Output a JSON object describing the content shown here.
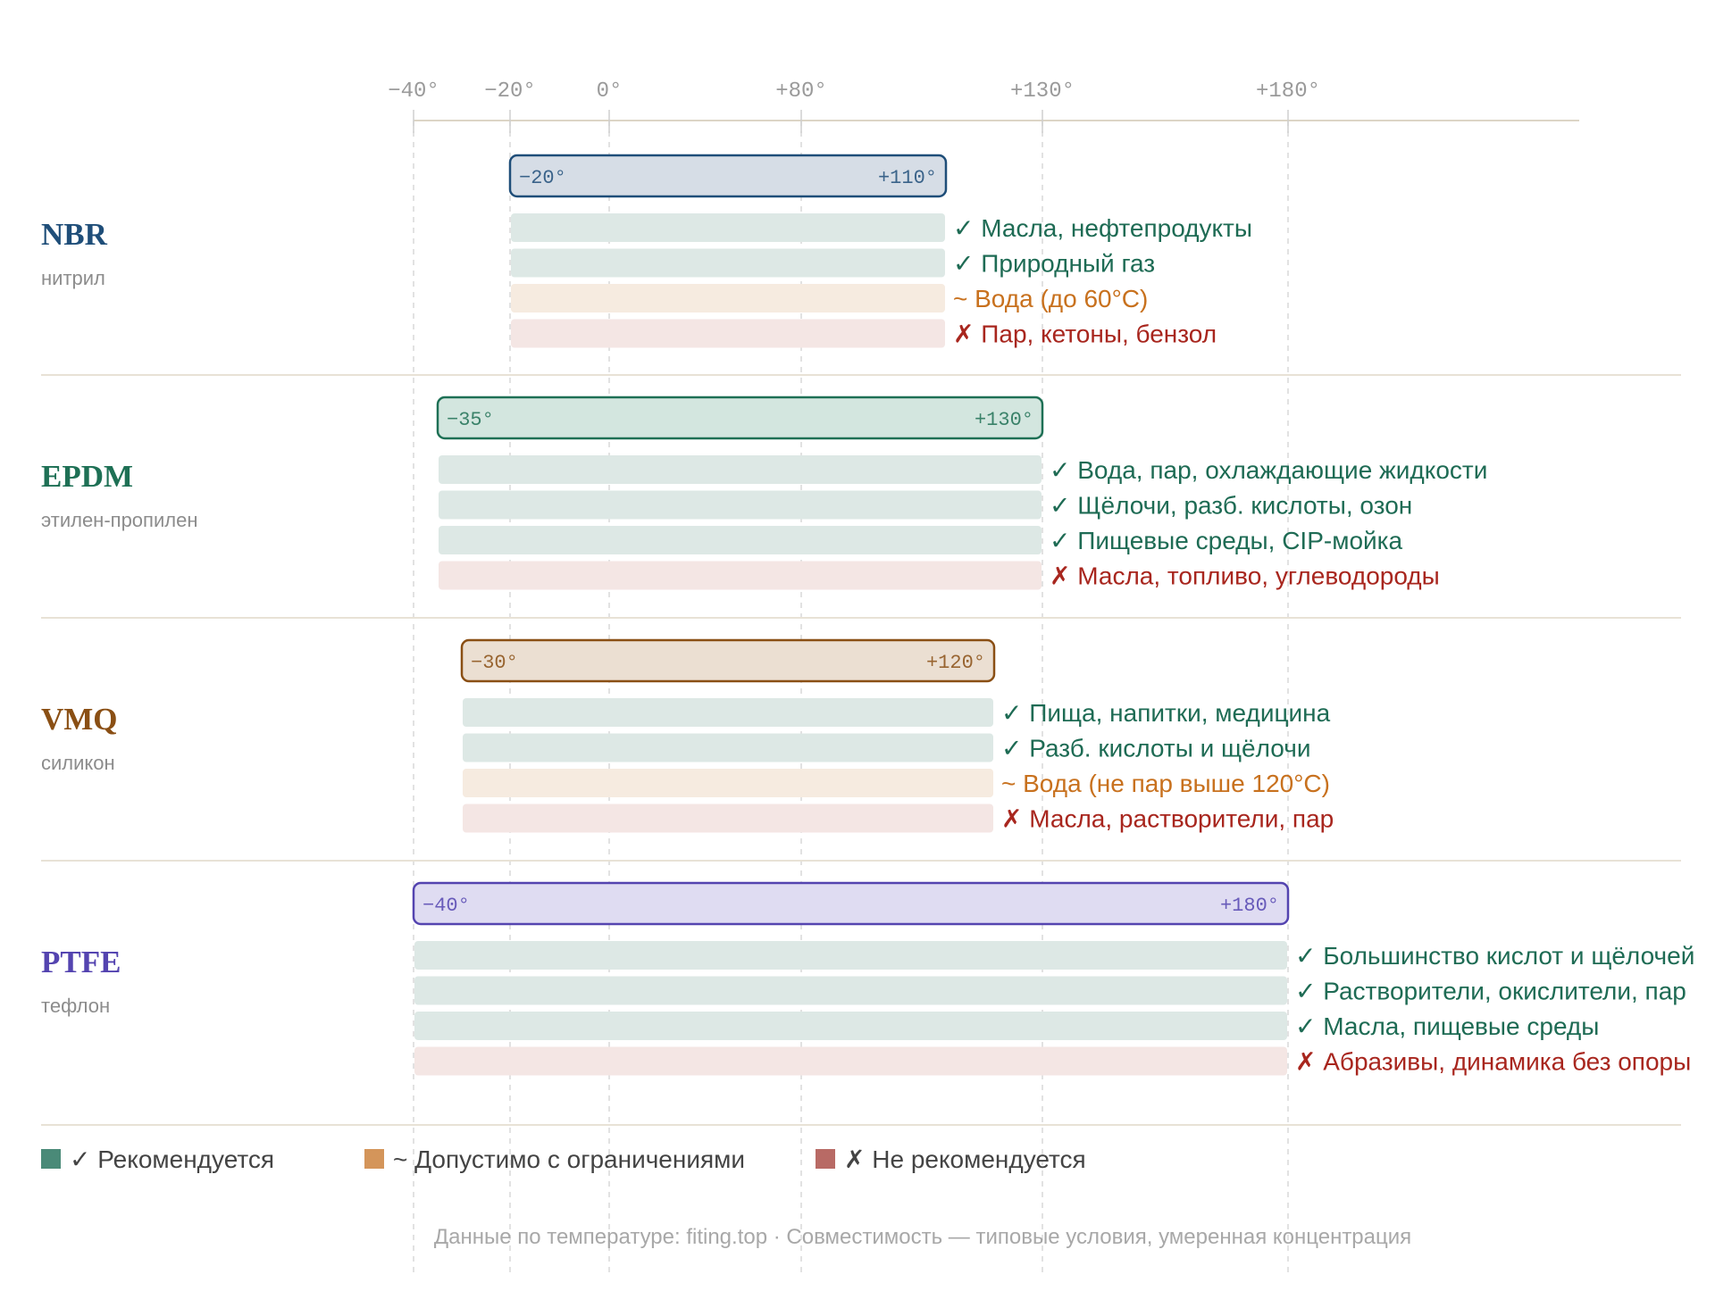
{
  "chart_data": {
    "type": "bar",
    "axis": {
      "ticks": [
        {
          "value": -40,
          "label": "−40°"
        },
        {
          "value": -20,
          "label": "−20°"
        },
        {
          "value": 0,
          "label": "0°"
        },
        {
          "value": 80,
          "label": "+80°"
        },
        {
          "value": 130,
          "label": "+130°"
        },
        {
          "value": 180,
          "label": "+180°"
        }
      ],
      "range": [
        -40,
        180
      ]
    },
    "materials": [
      {
        "name": "NBR",
        "subtitle": "нитрил",
        "color": "#1f4e79",
        "fill": "#d6dde6",
        "min": -20,
        "max": 110,
        "min_label": "−20°",
        "max_label": "+110°",
        "compat": [
          {
            "status": "ok",
            "text": "✓ Масла, нефтепродукты"
          },
          {
            "status": "ok",
            "text": "✓ Природный газ"
          },
          {
            "status": "limited",
            "text": "~ Вода (до 60°C)"
          },
          {
            "status": "no",
            "text": "✗ Пар, кетоны, бензол"
          }
        ]
      },
      {
        "name": "EPDM",
        "subtitle": "этилен-пропилен",
        "color": "#1e7055",
        "fill": "#d3e6df",
        "min": -35,
        "max": 130,
        "min_label": "−35°",
        "max_label": "+130°",
        "compat": [
          {
            "status": "ok",
            "text": "✓ Вода, пар, охлаждающие жидкости"
          },
          {
            "status": "ok",
            "text": "✓ Щёлочи, разб. кислоты, озон"
          },
          {
            "status": "ok",
            "text": "✓ Пищевые среды, CIP-мойка"
          },
          {
            "status": "no",
            "text": "✗ Масла, топливо, углеводороды"
          }
        ]
      },
      {
        "name": "VMQ",
        "subtitle": "силикон",
        "color": "#8a4f14",
        "fill": "#ebdfd2",
        "min": -30,
        "max": 120,
        "min_label": "−30°",
        "max_label": "+120°",
        "compat": [
          {
            "status": "ok",
            "text": "✓ Пища, напитки, медицина"
          },
          {
            "status": "ok",
            "text": "✓ Разб. кислоты и щёлочи"
          },
          {
            "status": "limited",
            "text": "~ Вода (не пар выше 120°C)"
          },
          {
            "status": "no",
            "text": "✗ Масла, растворители, пар"
          }
        ]
      },
      {
        "name": "PTFE",
        "subtitle": "тефлон",
        "color": "#5444b0",
        "fill": "#dfdcf2",
        "min": -40,
        "max": 180,
        "min_label": "−40°",
        "max_label": "+180°",
        "compat": [
          {
            "status": "ok",
            "text": "✓ Большинство кислот и щёлочей"
          },
          {
            "status": "ok",
            "text": "✓ Растворители, окислители, пар"
          },
          {
            "status": "ok",
            "text": "✓ Масла, пищевые среды"
          },
          {
            "status": "no",
            "text": "✗ Абразивы, динамика без опоры"
          }
        ]
      }
    ],
    "legend": [
      {
        "status": "ok",
        "swatch": "#4a8a78",
        "text": "✓ Рекомендуется"
      },
      {
        "status": "limited",
        "swatch": "#d4955a",
        "text": "~ Допустимо с ограничениями"
      },
      {
        "status": "no",
        "swatch": "#b86a65",
        "text": "✗ Не рекомендуется"
      }
    ],
    "status_colors": {
      "ok": {
        "bar": "#dde8e5",
        "text": "#1e6b54"
      },
      "limited": {
        "bar": "#f6ebe0",
        "text": "#c8711e"
      },
      "no": {
        "bar": "#f4e6e4",
        "text": "#a8261e"
      }
    }
  },
  "footnote": "Данные по температуре: fiting.top · Совместимость — типовые условия, умеренная концентрация"
}
